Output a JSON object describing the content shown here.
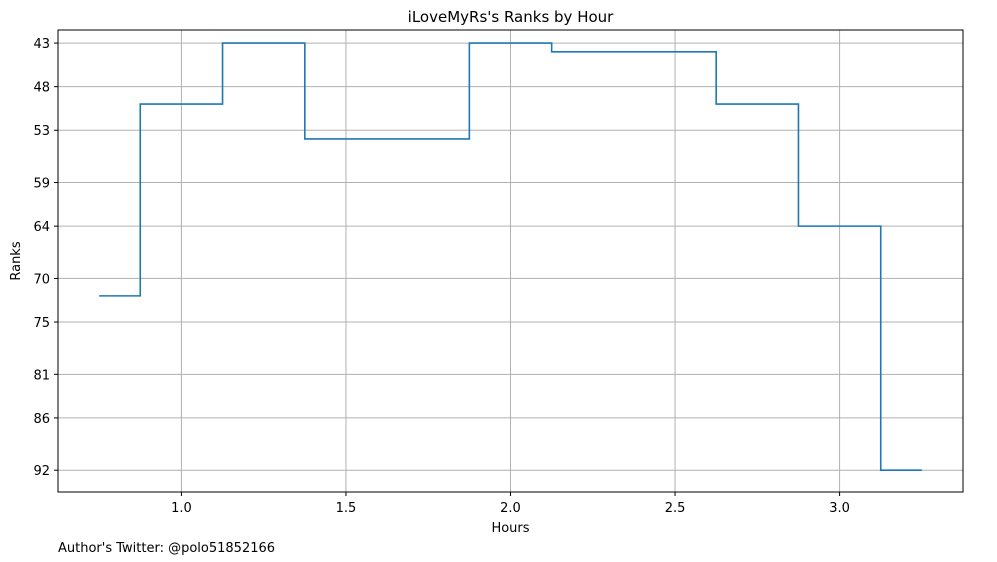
{
  "chart_data": {
    "type": "line",
    "drawstyle": "steps-mid",
    "title": "iLoveMyRs's Ranks by Hour",
    "xlabel": "Hours",
    "ylabel": "Ranks",
    "footnote": "Author's Twitter: @polo51852166",
    "xlim": [
      0.625,
      3.375
    ],
    "ylim": [
      94.5,
      41.5
    ],
    "y_inverted": true,
    "grid": true,
    "x_ticks": [
      {
        "value": 1.0,
        "label": "1.0"
      },
      {
        "value": 1.5,
        "label": "1.5"
      },
      {
        "value": 2.0,
        "label": "2.0"
      },
      {
        "value": 2.5,
        "label": "2.5"
      },
      {
        "value": 3.0,
        "label": "3.0"
      }
    ],
    "y_ticks": [
      {
        "value": 43,
        "label": "43"
      },
      {
        "value": 48,
        "label": "48"
      },
      {
        "value": 53,
        "label": "53"
      },
      {
        "value": 59,
        "label": "59"
      },
      {
        "value": 64,
        "label": "64"
      },
      {
        "value": 70,
        "label": "70"
      },
      {
        "value": 75,
        "label": "75"
      },
      {
        "value": 81,
        "label": "81"
      },
      {
        "value": 86,
        "label": "86"
      },
      {
        "value": 92,
        "label": "92"
      }
    ],
    "series": [
      {
        "color": "#1f77b4",
        "x": [
          0.75,
          1.0,
          1.25,
          1.5,
          1.75,
          2.0,
          2.25,
          2.5,
          2.75,
          3.0,
          3.25
        ],
        "y": [
          72,
          50,
          43,
          54,
          54,
          43,
          44,
          44,
          50,
          64,
          92
        ]
      }
    ]
  }
}
